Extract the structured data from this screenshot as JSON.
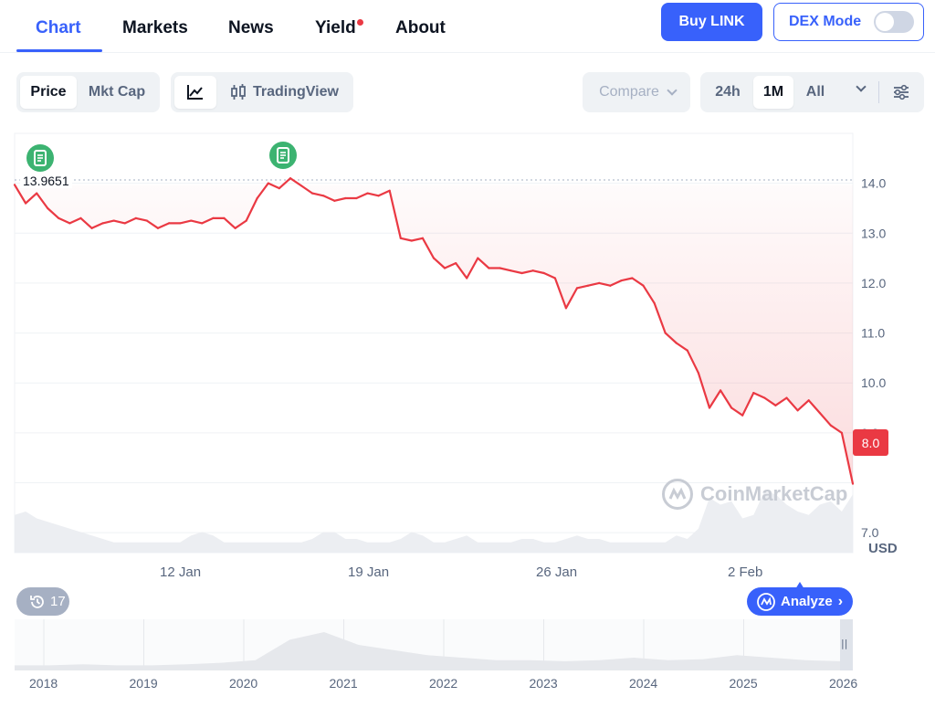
{
  "nav": {
    "tabs": [
      "Chart",
      "Markets",
      "News",
      "Yield",
      "About"
    ],
    "active_tab": "Chart",
    "yield_dot_color": "#ea3943",
    "buy_label": "Buy LINK",
    "dex_label": "DEX Mode",
    "dex_enabled": false
  },
  "toolbar": {
    "metric_options": [
      "Price",
      "Mkt Cap"
    ],
    "metric_selected": "Price",
    "line_icon": "line-chart-icon",
    "tradingview_label": "TradingView",
    "compare_label": "Compare",
    "ranges": [
      "24h",
      "1M",
      "All"
    ],
    "range_selected": "1M",
    "settings_icon": "sliders-icon"
  },
  "chart_data": {
    "type": "line",
    "x_tick_labels": [
      "12 Jan",
      "19 Jan",
      "26 Jan",
      "2 Feb"
    ],
    "y_tick_labels": [
      "14.0",
      "13.0",
      "12.0",
      "11.0",
      "10.0",
      "9.0",
      "8.0",
      "7.0"
    ],
    "ylim": [
      6.6,
      15.0
    ],
    "y_unit": "USD",
    "reference_price": "13.9651",
    "current_price": "8.0",
    "series": [
      {
        "values": [
          13.97,
          13.6,
          13.8,
          13.5,
          13.3,
          13.2,
          13.3,
          13.1,
          13.2,
          13.25,
          13.2,
          13.3,
          13.25,
          13.1,
          13.2,
          13.2,
          13.25,
          13.2,
          13.3,
          13.3,
          13.1,
          13.25,
          13.7,
          14.0,
          13.9,
          14.1,
          13.95,
          13.8,
          13.75,
          13.65,
          13.7,
          13.7,
          13.8,
          13.75,
          13.85,
          12.9,
          12.85,
          12.9,
          12.5,
          12.3,
          12.4,
          12.1,
          12.5,
          12.3,
          12.3,
          12.25,
          12.2,
          12.25,
          12.2,
          12.1,
          11.5,
          11.9,
          11.95,
          12.0,
          11.95,
          12.05,
          12.1,
          11.95,
          11.6,
          11.0,
          10.8,
          10.65,
          10.2,
          9.5,
          9.85,
          9.5,
          9.35,
          9.8,
          9.7,
          9.55,
          9.7,
          9.45,
          9.65,
          9.4,
          9.15,
          9.0,
          7.98
        ],
        "color_up": "#16c784",
        "color_down": "#ea3943"
      }
    ],
    "volume_profile": [
      0.55,
      0.6,
      0.5,
      0.45,
      0.4,
      0.35,
      0.3,
      0.25,
      0.2,
      0.15,
      0.15,
      0.15,
      0.15,
      0.15,
      0.15,
      0.15,
      0.25,
      0.3,
      0.25,
      0.15,
      0.15,
      0.15,
      0.15,
      0.15,
      0.15,
      0.15,
      0.15,
      0.2,
      0.3,
      0.3,
      0.2,
      0.2,
      0.15,
      0.15,
      0.15,
      0.2,
      0.3,
      0.25,
      0.15,
      0.15,
      0.2,
      0.25,
      0.15,
      0.15,
      0.15,
      0.15,
      0.2,
      0.2,
      0.15,
      0.15,
      0.2,
      0.25,
      0.2,
      0.2,
      0.15,
      0.15,
      0.15,
      0.15,
      0.15,
      0.15,
      0.25,
      0.2,
      0.35,
      0.8,
      0.7,
      0.75,
      0.5,
      0.55,
      0.9,
      0.85,
      0.7,
      0.6,
      0.55,
      0.7,
      0.75,
      0.6,
      0.85
    ]
  },
  "footer": {
    "history_count": "17",
    "analyze_label": "Analyze",
    "year_labels": [
      "2018",
      "2019",
      "2020",
      "2021",
      "2022",
      "2023",
      "2024",
      "2025",
      "2026"
    ]
  },
  "watermark": "CoinMarketCap",
  "usd_label": "USD"
}
